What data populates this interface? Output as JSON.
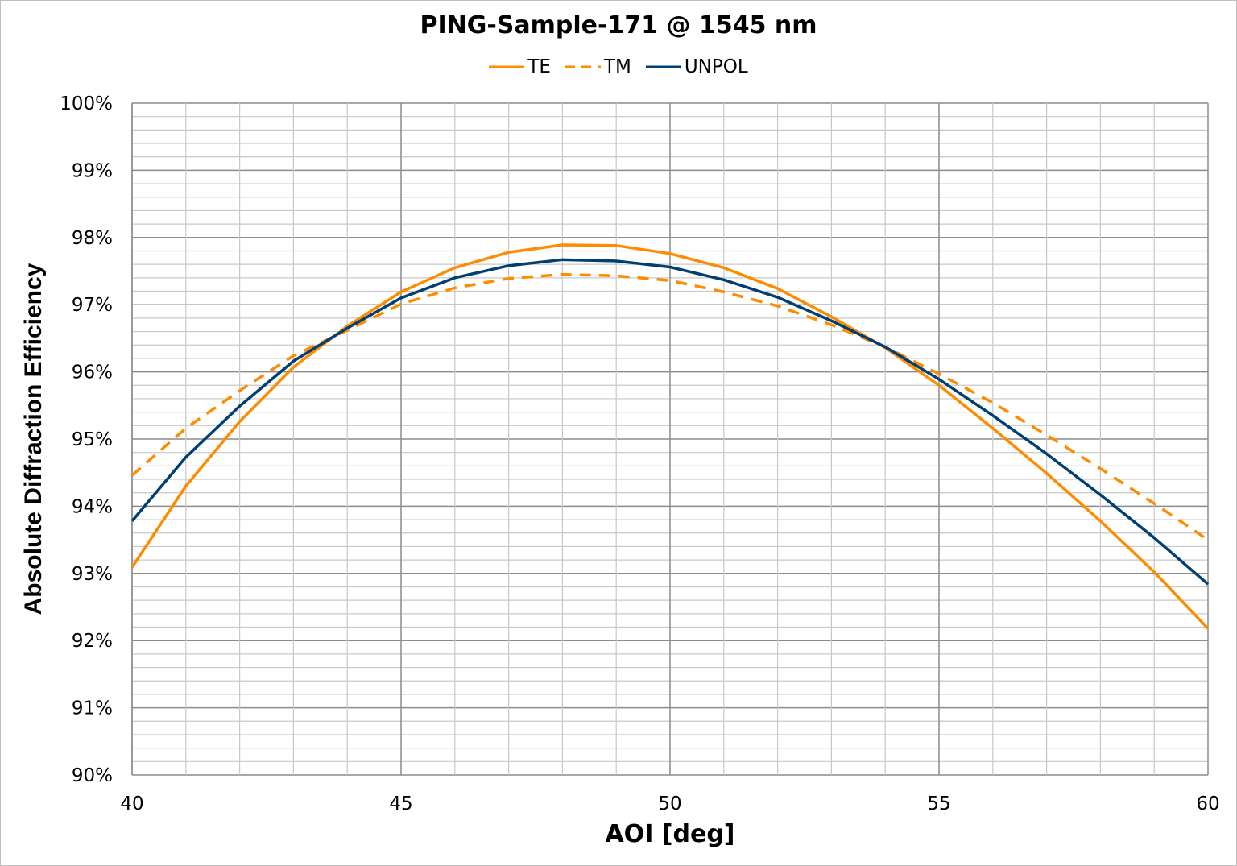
{
  "chart_data": {
    "type": "line",
    "title": "PING-Sample-171 @ 1545 nm",
    "xlabel": "AOI [deg]",
    "ylabel": "Absolute Diffraction Efficiency",
    "xlim": [
      40,
      60
    ],
    "ylim": [
      0.9,
      1.0
    ],
    "x_ticks": [
      "40",
      "45",
      "50",
      "55",
      "60"
    ],
    "y_ticks": [
      "90%",
      "91%",
      "92%",
      "93%",
      "94%",
      "95%",
      "96%",
      "97%",
      "98%",
      "99%",
      "100%"
    ],
    "grid": true,
    "legend_position": "top",
    "x": [
      40,
      41,
      42,
      43,
      44,
      45,
      46,
      47,
      48,
      49,
      50,
      51,
      52,
      53,
      54,
      55,
      56,
      57,
      58,
      59,
      60
    ],
    "series": [
      {
        "name": "TE",
        "color": "#FF8C00",
        "dash": "solid",
        "values": [
          93.09,
          94.3,
          95.26,
          96.07,
          96.68,
          97.19,
          97.55,
          97.78,
          97.89,
          97.88,
          97.76,
          97.55,
          97.24,
          96.82,
          96.36,
          95.8,
          95.16,
          94.49,
          93.78,
          93.02,
          92.18
        ]
      },
      {
        "name": "TM",
        "color": "#FF8C00",
        "dash": "dashed",
        "values": [
          94.46,
          95.16,
          95.72,
          96.24,
          96.62,
          97.01,
          97.25,
          97.39,
          97.45,
          97.43,
          97.36,
          97.19,
          96.98,
          96.7,
          96.37,
          95.97,
          95.54,
          95.06,
          94.56,
          94.04,
          93.5
        ]
      },
      {
        "name": "UNPOL",
        "color": "#003F72",
        "dash": "solid",
        "values": [
          93.78,
          94.73,
          95.49,
          96.16,
          96.65,
          97.1,
          97.4,
          97.58,
          97.67,
          97.65,
          97.56,
          97.37,
          97.11,
          96.76,
          96.37,
          95.89,
          95.35,
          94.78,
          94.17,
          93.53,
          92.84
        ]
      }
    ]
  },
  "legend": {
    "te": "TE",
    "tm": "TM",
    "unpol": "UNPOL"
  }
}
